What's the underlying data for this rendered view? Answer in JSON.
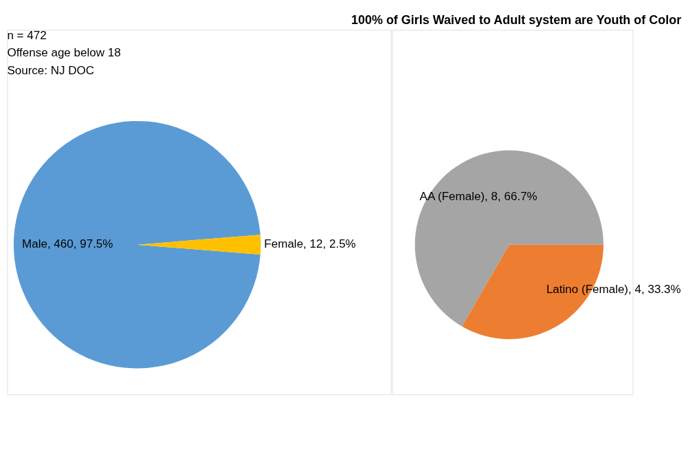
{
  "chart_data": [
    {
      "type": "pie",
      "title": "100% of Girls Waived to Adult system are Youth of Color",
      "annotations": [
        "n = 472",
        "Offense age below 18",
        "Source: NJ DOC"
      ],
      "categories": [
        "Male",
        "Female"
      ],
      "values": [
        460,
        12
      ],
      "colors": [
        "#5b9bd5",
        "#ffc000"
      ],
      "value_labels": [
        ", 460, 97.5%",
        ", 12, 2.5%"
      ],
      "legend": false
    },
    {
      "type": "pie",
      "categories": [
        "AA (Female)",
        "Latino (Female)"
      ],
      "values": [
        8,
        4
      ],
      "colors": [
        "#a5a5a5",
        "#ed7d31"
      ],
      "value_labels": [
        ", 8, 66.7%",
        ", 4, 33.3%"
      ],
      "legend": false
    }
  ]
}
